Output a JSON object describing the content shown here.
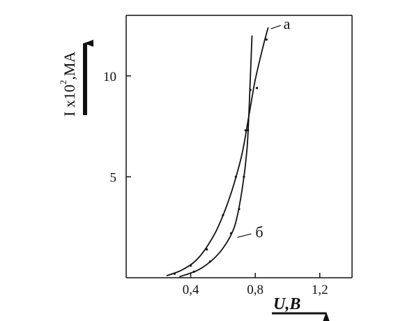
{
  "chart_data": {
    "type": "line",
    "title": "",
    "xlabel": "U,B",
    "ylabel": "I x10",
    "ylabel_superscript": "2",
    "ylabel_unit": ",MA",
    "xlim": [
      0,
      1.4
    ],
    "ylim": [
      0,
      13
    ],
    "grid": false,
    "x_ticks": [
      {
        "value": 0.4,
        "label": "0,4"
      },
      {
        "value": 0.8,
        "label": "0,8"
      },
      {
        "value": 1.2,
        "label": "1,2"
      }
    ],
    "y_ticks": [
      {
        "value": 5,
        "label": "5"
      },
      {
        "value": 10,
        "label": "10"
      }
    ],
    "series": [
      {
        "name": "a",
        "curve": [
          [
            0.25,
            0.1
          ],
          [
            0.35,
            0.4
          ],
          [
            0.45,
            1.0
          ],
          [
            0.55,
            2.2
          ],
          [
            0.62,
            3.5
          ],
          [
            0.67,
            4.7
          ],
          [
            0.72,
            6.2
          ],
          [
            0.76,
            8.0
          ],
          [
            0.8,
            9.8
          ],
          [
            0.85,
            11.5
          ],
          [
            0.88,
            12.4
          ]
        ],
        "points": [
          [
            0.3,
            0.2
          ],
          [
            0.4,
            0.6
          ],
          [
            0.5,
            1.4
          ],
          [
            0.6,
            3.1
          ],
          [
            0.68,
            5.0
          ],
          [
            0.74,
            7.3
          ],
          [
            0.81,
            9.4
          ],
          [
            0.87,
            11.8
          ]
        ]
      },
      {
        "name": "б",
        "curve": [
          [
            0.33,
            0.05
          ],
          [
            0.45,
            0.4
          ],
          [
            0.55,
            1.0
          ],
          [
            0.62,
            1.7
          ],
          [
            0.67,
            2.5
          ],
          [
            0.7,
            3.5
          ],
          [
            0.73,
            5.0
          ],
          [
            0.75,
            6.5
          ],
          [
            0.76,
            8.0
          ],
          [
            0.77,
            10.0
          ],
          [
            0.78,
            12.0
          ]
        ],
        "points": [
          [
            0.42,
            0.3
          ],
          [
            0.52,
            0.8
          ],
          [
            0.65,
            2.2
          ],
          [
            0.7,
            3.4
          ],
          [
            0.73,
            5.0
          ],
          [
            0.755,
            7.3
          ],
          [
            0.77,
            9.3
          ]
        ]
      }
    ]
  }
}
